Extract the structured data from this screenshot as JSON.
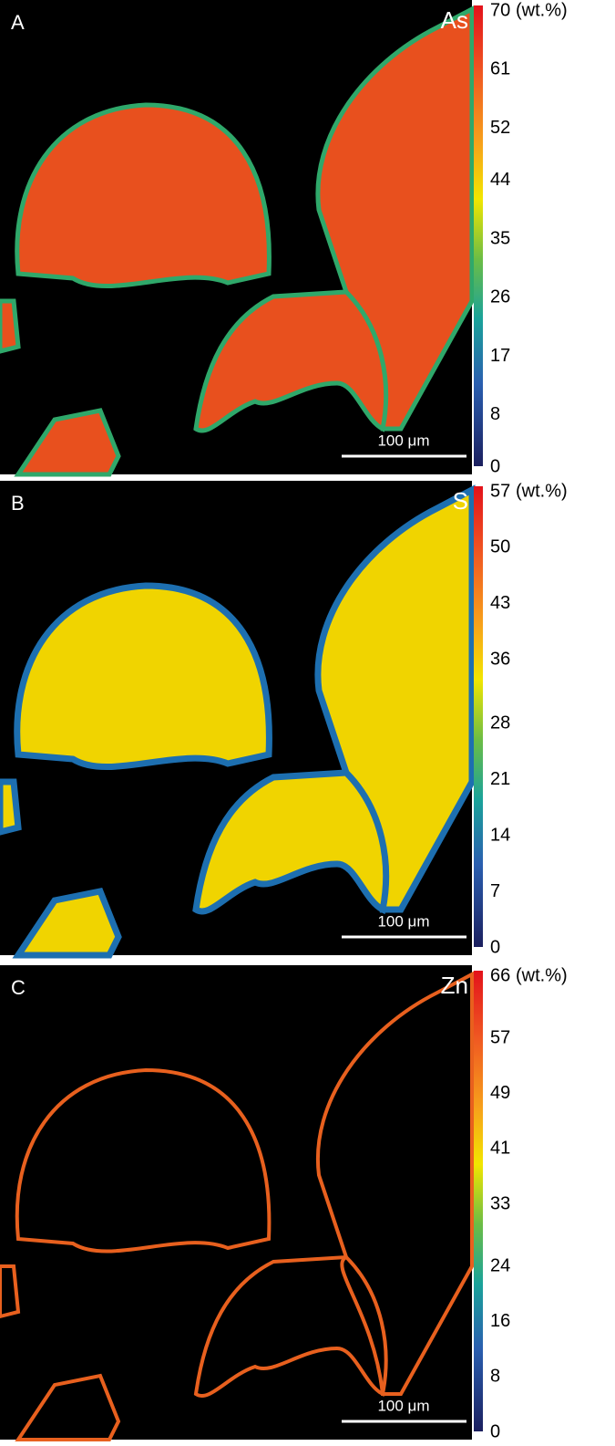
{
  "panels": [
    {
      "label": "A",
      "element": "As",
      "unit": "(wt.%)",
      "scale_bar": "100 μm",
      "colorbar_ticks": [
        70,
        61,
        52,
        44,
        35,
        26,
        17,
        8,
        0
      ]
    },
    {
      "label": "B",
      "element": "S",
      "unit": "(wt.%)",
      "scale_bar": "100 μm",
      "colorbar_ticks": [
        57,
        50,
        43,
        36,
        28,
        21,
        14,
        7,
        0
      ]
    },
    {
      "label": "C",
      "element": "Zn",
      "unit": "(wt.%)",
      "scale_bar": "100 μm",
      "colorbar_ticks": [
        66,
        57,
        49,
        41,
        33,
        24,
        16,
        8,
        0
      ]
    }
  ]
}
